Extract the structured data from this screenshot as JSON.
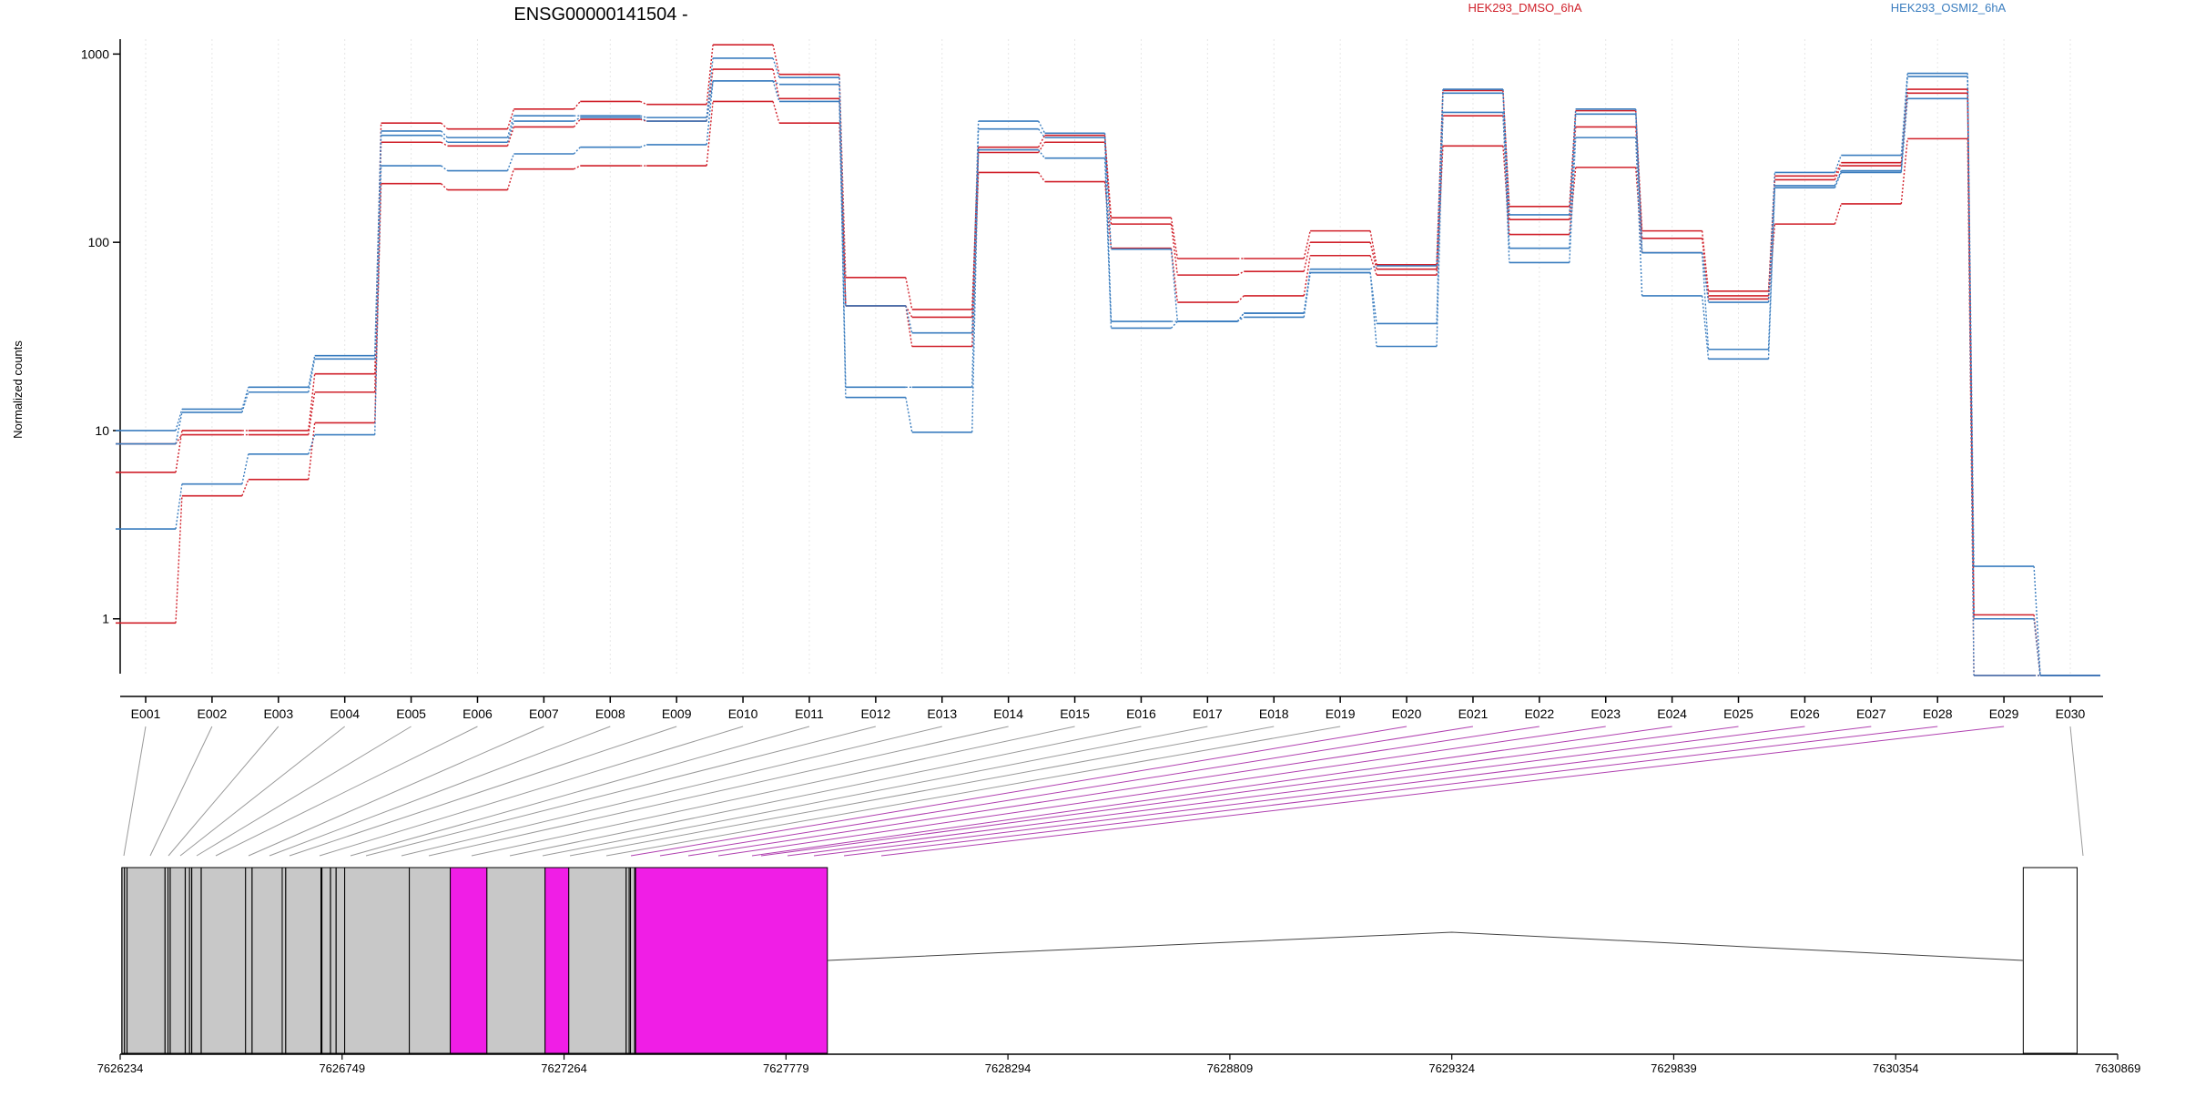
{
  "colors": {
    "dmso": "#d0202a",
    "osmi": "#3a7dbf",
    "exon_gray": "#c8c8c8",
    "exon_magenta": "#f01ee6",
    "connector_gray": "#9a9a9a",
    "connector_purple": "#b040b0"
  },
  "chart_data": {
    "type": "line",
    "title": "ENSG00000141504 -",
    "ylabel": "Normalized counts",
    "xlabel": "",
    "y_scale": "log",
    "ylim": [
      0.5,
      1200
    ],
    "y_ticks": [
      1,
      10,
      100,
      1000
    ],
    "y_tick_labels": [
      "1",
      "10",
      "100",
      "1000"
    ],
    "grid": "vertical dotted lines at exon centers",
    "legend": [
      {
        "label": "HEK293_DMSO_6hA",
        "color": "#d0202a",
        "placement": "top-right"
      },
      {
        "label": "HEK293_OSMI2_6hA",
        "color": "#3a7dbf",
        "placement": "top-right"
      }
    ],
    "categories": [
      "E001",
      "E002",
      "E003",
      "E004",
      "E005",
      "E006",
      "E007",
      "E008",
      "E009",
      "E010",
      "E011",
      "E012",
      "E013",
      "E014",
      "E015",
      "E016",
      "E017",
      "E018",
      "E019",
      "E020",
      "E021",
      "E022",
      "E023",
      "E024",
      "E025",
      "E026",
      "E027",
      "E028",
      "E029",
      "E030"
    ],
    "series": [
      {
        "group": "HEK293_DMSO_6hA",
        "color": "#d0202a",
        "values": [
          6,
          10,
          10,
          20,
          430,
          400,
          510,
          560,
          540,
          1120,
          780,
          65,
          44,
          320,
          370,
          135,
          82,
          82,
          115,
          76,
          640,
          155,
          500,
          115,
          55,
          225,
          265,
          650,
          1.05,
          0.5
        ]
      },
      {
        "group": "HEK293_DMSO_6hA",
        "color": "#d0202a",
        "values": [
          8.5,
          9.5,
          9.5,
          16,
          340,
          325,
          410,
          450,
          440,
          830,
          580,
          46,
          40,
          300,
          340,
          125,
          67,
          70,
          100,
          72,
          470,
          132,
          410,
          105,
          52,
          215,
          255,
          620,
          1.0,
          0.5
        ]
      },
      {
        "group": "HEK293_DMSO_6hA",
        "color": "#d0202a",
        "values": [
          0.95,
          4.5,
          5.5,
          11,
          205,
          190,
          245,
          255,
          255,
          560,
          430,
          46,
          28,
          235,
          210,
          93,
          48,
          52,
          85,
          67,
          325,
          110,
          250,
          88,
          50,
          125,
          160,
          355,
          0.5,
          0.5
        ]
      },
      {
        "group": "HEK293_OSMI2_6hA",
        "color": "#3a7dbf",
        "values": [
          10,
          13,
          17,
          25,
          390,
          360,
          470,
          470,
          460,
          950,
          750,
          46,
          33,
          440,
          380,
          92,
          38,
          42,
          72,
          75,
          650,
          140,
          510,
          88,
          48,
          235,
          290,
          790,
          1.9,
          0.5
        ]
      },
      {
        "group": "HEK293_OSMI2_6hA",
        "color": "#3a7dbf",
        "values": [
          8.5,
          12.5,
          16,
          24,
          370,
          340,
          440,
          460,
          440,
          720,
          690,
          17,
          17,
          400,
          360,
          38,
          38,
          42,
          69,
          37,
          620,
          93,
          480,
          88,
          27,
          200,
          240,
          760,
          1.0,
          0.5
        ]
      },
      {
        "group": "HEK293_OSMI2_6hA",
        "color": "#3a7dbf",
        "values": [
          3,
          5.2,
          7.5,
          9.5,
          255,
          240,
          295,
          320,
          330,
          720,
          560,
          15,
          9.8,
          310,
          280,
          35,
          38,
          40,
          69,
          28,
          490,
          78,
          360,
          52,
          24,
          195,
          235,
          580,
          0.5,
          0.5
        ]
      }
    ],
    "exon_connector_color": [
      "gray",
      "gray",
      "gray",
      "gray",
      "gray",
      "gray",
      "gray",
      "gray",
      "gray",
      "gray",
      "gray",
      "gray",
      "gray",
      "gray",
      "gray",
      "gray",
      "gray",
      "gray",
      "gray",
      "purple",
      "purple",
      "purple",
      "purple",
      "purple",
      "purple",
      "purple",
      "purple",
      "purple",
      "purple",
      "gray"
    ],
    "gene_model": {
      "genomic_range": [
        7626234,
        7630869
      ],
      "axis_ticks": [
        7626234,
        7626749,
        7627264,
        7627779,
        7628294,
        7628809,
        7629324,
        7629839,
        7630354,
        7630869
      ],
      "axis_tick_labels": [
        "7626234",
        "7626749",
        "7627264",
        "7627779",
        "7628294",
        "7628809",
        "7629324",
        "7629839",
        "7630354",
        "7630869"
      ],
      "exon_blocks": [
        {
          "start": 7626238,
          "end": 7626250,
          "fill": "gray"
        },
        {
          "start": 7626250,
          "end": 7626345,
          "fill": "gray"
        },
        {
          "start": 7626345,
          "end": 7626395,
          "fill": "gray"
        },
        {
          "start": 7626395,
          "end": 7626525,
          "fill": "gray"
        },
        {
          "start": 7626525,
          "end": 7626610,
          "fill": "gray"
        },
        {
          "start": 7626610,
          "end": 7626700,
          "fill": "gray"
        },
        {
          "start": 7626700,
          "end": 7626755,
          "fill": "gray"
        },
        {
          "start": 7626755,
          "end": 7626905,
          "fill": "gray"
        },
        {
          "start": 7626905,
          "end": 7627000,
          "fill": "gray"
        },
        {
          "start": 7627000,
          "end": 7627085,
          "fill": "magenta"
        },
        {
          "start": 7627085,
          "end": 7627220,
          "fill": "gray"
        },
        {
          "start": 7627220,
          "end": 7627275,
          "fill": "magenta"
        },
        {
          "start": 7627275,
          "end": 7627415,
          "fill": "gray"
        },
        {
          "start": 7627415,
          "end": 7627430,
          "fill": "gray"
        },
        {
          "start": 7627430,
          "end": 7627875,
          "fill": "magenta"
        },
        {
          "start": 7630650,
          "end": 7630775,
          "fill": "white"
        }
      ],
      "exon_divider_lines": [
        7626238,
        7626244,
        7626338,
        7626350,
        7626385,
        7626400,
        7626422,
        7626540,
        7626618,
        7626702,
        7626722,
        7626735,
        7627408,
        7627418,
        7627428
      ],
      "intron": {
        "start": 7627875,
        "end": 7630650,
        "apex": 7629324
      }
    }
  }
}
